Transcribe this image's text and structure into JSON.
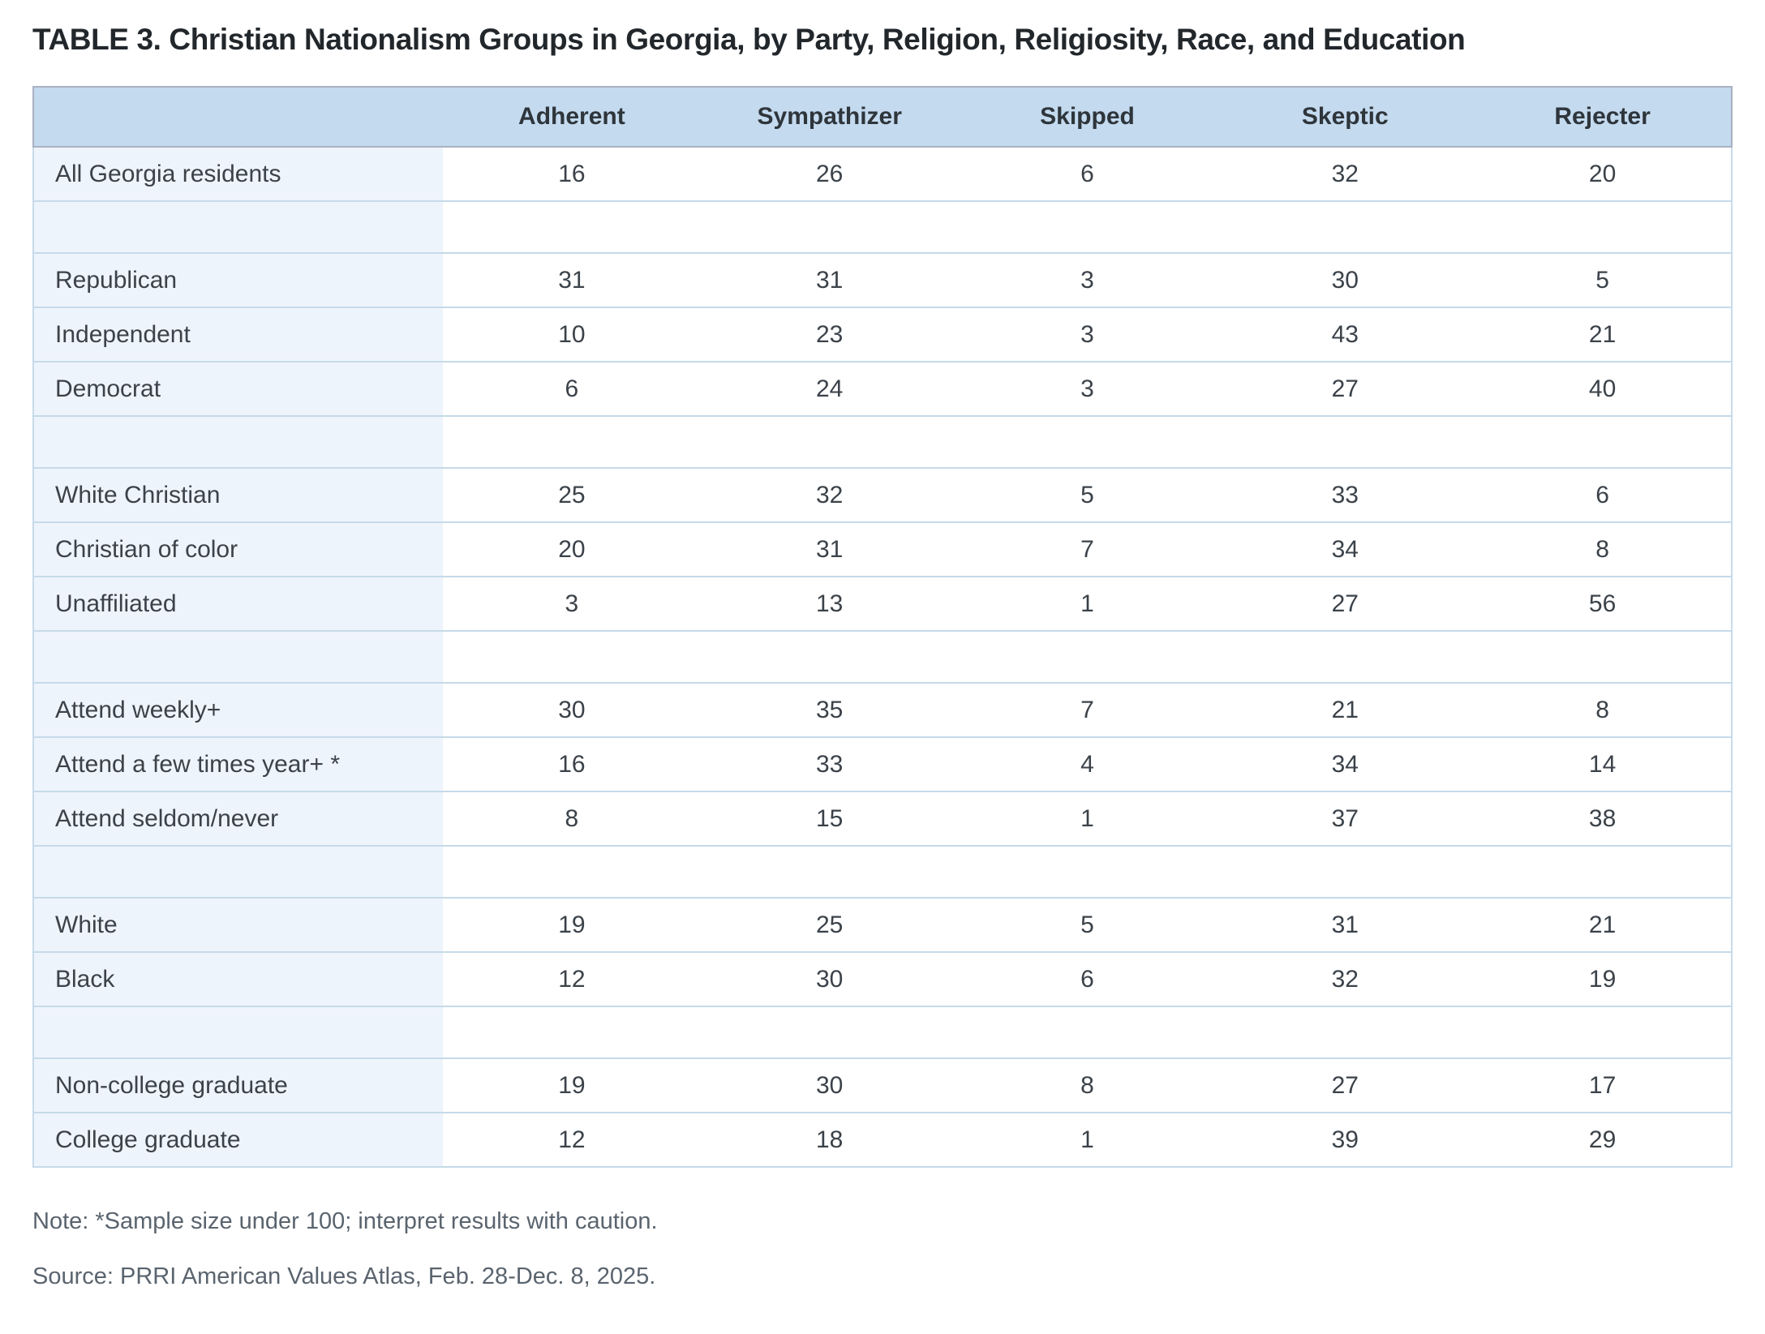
{
  "chart_data": {
    "type": "table",
    "title": "TABLE 3. Christian Nationalism Groups in Georgia, by Party, Religion, Religiosity, Race, and Education",
    "columns": [
      "Adherent",
      "Sympathizer",
      "Skipped",
      "Skeptic",
      "Rejecter"
    ],
    "row_groups": [
      {
        "rows": [
          {
            "label": "All Georgia residents",
            "values": [
              16,
              26,
              6,
              32,
              20
            ]
          }
        ]
      },
      {
        "rows": [
          {
            "label": "Republican",
            "values": [
              31,
              31,
              3,
              30,
              5
            ]
          },
          {
            "label": "Independent",
            "values": [
              10,
              23,
              3,
              43,
              21
            ]
          },
          {
            "label": "Democrat",
            "values": [
              6,
              24,
              3,
              27,
              40
            ]
          }
        ]
      },
      {
        "rows": [
          {
            "label": "White Christian",
            "values": [
              25,
              32,
              5,
              33,
              6
            ]
          },
          {
            "label": "Christian of color",
            "values": [
              20,
              31,
              7,
              34,
              8
            ]
          },
          {
            "label": "Unaffiliated",
            "values": [
              3,
              13,
              1,
              27,
              56
            ]
          }
        ]
      },
      {
        "rows": [
          {
            "label": "Attend weekly+",
            "values": [
              30,
              35,
              7,
              21,
              8
            ]
          },
          {
            "label": "Attend a few times year+ *",
            "values": [
              16,
              33,
              4,
              34,
              14
            ]
          },
          {
            "label": "Attend seldom/never",
            "values": [
              8,
              15,
              1,
              37,
              38
            ]
          }
        ]
      },
      {
        "rows": [
          {
            "label": "White",
            "values": [
              19,
              25,
              5,
              31,
              21
            ]
          },
          {
            "label": "Black",
            "values": [
              12,
              30,
              6,
              32,
              19
            ]
          }
        ]
      },
      {
        "rows": [
          {
            "label": "Non-college graduate",
            "values": [
              19,
              30,
              8,
              27,
              17
            ]
          },
          {
            "label": "College graduate",
            "values": [
              12,
              18,
              1,
              39,
              29
            ]
          }
        ]
      }
    ],
    "note": "Note: *Sample size under 100; interpret results with caution.",
    "source": "Source: PRRI American Values Atlas, Feb. 28-Dec. 8, 2025.",
    "layout": {
      "legend": "none",
      "grid": "horizontal-row-borders",
      "label_column_first": true
    }
  },
  "colors": {
    "header_bg": "#c4daef",
    "label_column_bg": "#eef4fb",
    "row_border": "#c6dae9",
    "header_border": "#a9b1c2",
    "title_text": "#22272c",
    "body_text": "#3b4249",
    "muted_text": "#5a646e"
  }
}
